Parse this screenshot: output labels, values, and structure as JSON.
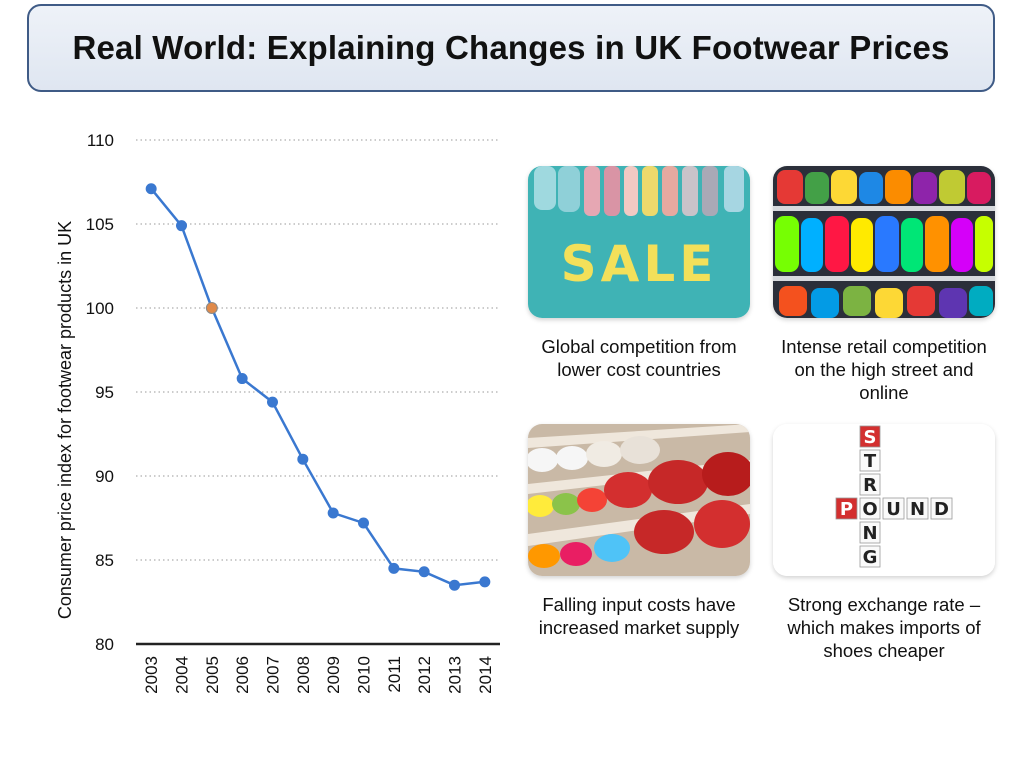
{
  "slide": {
    "title": "Real World: Explaining Changes in UK Footwear Prices"
  },
  "panels": [
    {
      "caption": "Global competition from lower cost countries",
      "image_text": "SALE"
    },
    {
      "caption": "Intense retail competition on the high street and online",
      "image_text": ""
    },
    {
      "caption": "Falling input costs have increased market supply",
      "image_text": ""
    },
    {
      "caption": "Strong exchange rate – which makes imports of shoes cheaper",
      "image_text": "STRONG POUND"
    }
  ],
  "chart_data": {
    "type": "line",
    "title": "",
    "xlabel": "",
    "ylabel": "Consumer price index for footwear products in UK",
    "categories": [
      "2003",
      "2004",
      "2005",
      "2006",
      "2007",
      "2008",
      "2009",
      "2010",
      "2011",
      "2012",
      "2013",
      "2014"
    ],
    "values": [
      107.1,
      104.9,
      100.0,
      95.8,
      94.4,
      91.0,
      87.8,
      87.2,
      84.5,
      84.3,
      83.5,
      83.7
    ],
    "highlight_index": 2,
    "ylim": [
      80,
      110
    ],
    "yticks": [
      80,
      85,
      90,
      95,
      100,
      105,
      110
    ],
    "grid": true,
    "line_color": "#3a78d0",
    "highlight_color": "#e08a4a"
  }
}
